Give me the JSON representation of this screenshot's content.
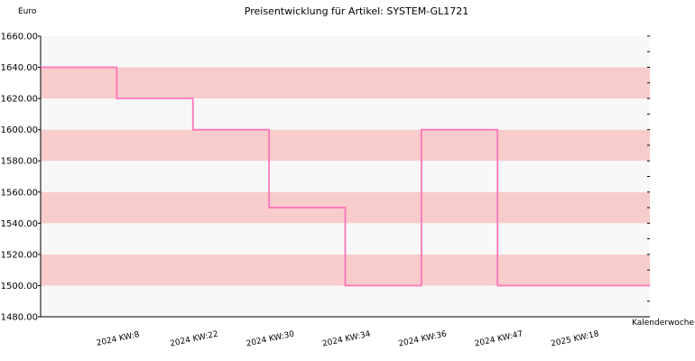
{
  "chart_data": {
    "type": "line",
    "step": true,
    "title": "Preisentwicklung für Artikel: SYSTEM-GL1721",
    "ylabel": "Euro",
    "xlabel": "Kalenderwoche",
    "ylim": [
      1480,
      1660
    ],
    "yticks": [
      "1480.00",
      "1500.00",
      "1520.00",
      "1540.00",
      "1560.00",
      "1580.00",
      "1600.00",
      "1620.00",
      "1640.00",
      "1660.00"
    ],
    "categories": [
      "2024 KW:8",
      "2024 KW:22",
      "2024 KW:30",
      "2024 KW:34",
      "2024 KW:36",
      "2024 KW:47",
      "2025 KW:18"
    ],
    "series": [
      {
        "values": [
          1640,
          1620,
          1600,
          1550,
          1500,
          1600,
          1500
        ]
      }
    ],
    "line_color": "#ff77bb",
    "band_colors": [
      "#f8f8f8",
      "#f9cccc"
    ],
    "grid": false
  }
}
